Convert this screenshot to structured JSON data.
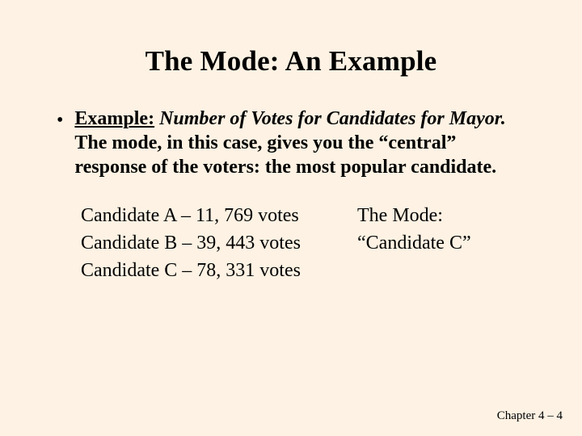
{
  "slide": {
    "background_color": "#fdf2e3",
    "text_color": "#000000",
    "font_family": "Times New Roman"
  },
  "title": {
    "text": "The Mode:  An Example",
    "fontsize": 35,
    "bold": true
  },
  "bullet": {
    "marker": "•",
    "label": "Example:",
    "italic_phrase": "Number of Votes for Candidates for Mayor.",
    "rest": "  The mode, in this case, gives you the “central” response of the voters: the most popular candidate.",
    "fontsize": 24,
    "bold": true
  },
  "data_rows": {
    "fontsize": 24,
    "lines": {
      "a": "Candidate A – 11, 769 votes",
      "b": "Candidate B – 39, 443 votes",
      "c": "Candidate C – 78, 331 votes"
    }
  },
  "mode_box": {
    "line1": "The Mode:",
    "line2": "“Candidate C”"
  },
  "footer": {
    "text": "Chapter 4 – 4",
    "fontsize": 15
  }
}
